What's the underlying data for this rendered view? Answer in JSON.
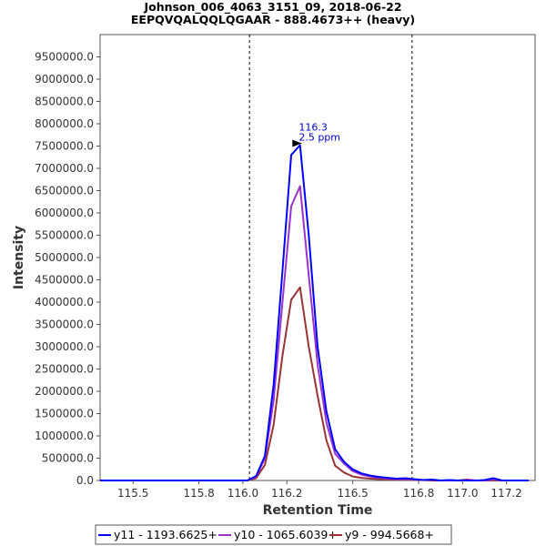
{
  "chart_data": {
    "type": "line",
    "title": "Johnson_006_4063_3151_09, 2018-06-22",
    "subtitle": "EEPQVQALQQLQGAAR - 888.4673++ (heavy)",
    "xlabel": "Retention Time",
    "ylabel": "Intensity",
    "xlim": [
      115.35,
      117.33
    ],
    "ylim": [
      0,
      10000000
    ],
    "x_ticks": [
      115.5,
      115.8,
      116.0,
      116.2,
      116.5,
      116.8,
      117.0,
      117.2
    ],
    "x_tick_labels": [
      "115.5",
      "115.8",
      "116.0",
      "116.2",
      "116.5",
      "116.8",
      "117.0",
      "117.2"
    ],
    "y_ticks": [
      0,
      500000,
      1000000,
      1500000,
      2000000,
      2500000,
      3000000,
      3500000,
      4000000,
      4500000,
      5000000,
      5500000,
      6000000,
      6500000,
      7000000,
      7500000,
      8000000,
      8500000,
      9000000,
      9500000
    ],
    "y_tick_labels": [
      "0.0",
      "500000.0",
      "1000000.0",
      "1500000.0",
      "2000000.0",
      "2500000.0",
      "3000000.0",
      "3500000.0",
      "4000000.0",
      "4500000.0",
      "5000000.0",
      "5500000.0",
      "6000000.0",
      "6500000.0",
      "7000000.0",
      "7500000.0",
      "8000000.0",
      "8500000.0",
      "9000000.0",
      "9500000.0"
    ],
    "grid": false,
    "vlines": [
      116.03,
      116.77
    ],
    "annotation": {
      "x": 116.3,
      "y": 7520000,
      "lines": [
        "116.3",
        "2.5 ppm"
      ],
      "color": "#0000cc"
    },
    "legend_position": "bottom",
    "series": [
      {
        "name": "y11 - 1193.6625+",
        "color": "#0000ff",
        "x": [
          115.35,
          116.02,
          116.06,
          116.1,
          116.14,
          116.18,
          116.22,
          116.26,
          116.3,
          116.34,
          116.38,
          116.42,
          116.46,
          116.5,
          116.54,
          116.58,
          116.62,
          116.66,
          116.7,
          116.74,
          116.78,
          116.82,
          116.86,
          116.9,
          116.94,
          116.98,
          117.02,
          117.06,
          117.1,
          117.14,
          117.18,
          117.22,
          117.26,
          117.3
        ],
        "y": [
          0,
          0,
          100000,
          550000,
          2150000,
          4700000,
          7300000,
          7520000,
          5500000,
          3000000,
          1550000,
          700000,
          420000,
          250000,
          160000,
          110000,
          80000,
          60000,
          40000,
          50000,
          30000,
          10000,
          20000,
          0,
          10000,
          0,
          0,
          0,
          10000,
          50000,
          0,
          0,
          0,
          0
        ]
      },
      {
        "name": "y10 - 1065.6039+",
        "color": "#9933cc",
        "x": [
          115.35,
          116.02,
          116.06,
          116.1,
          116.14,
          116.18,
          116.22,
          116.26,
          116.3,
          116.34,
          116.38,
          116.42,
          116.46,
          116.5,
          116.54,
          116.58,
          116.62,
          116.66,
          116.7,
          116.74,
          116.78,
          116.82,
          116.86,
          116.9,
          116.94,
          116.98,
          117.02,
          117.06,
          117.1,
          117.14,
          117.18,
          117.22,
          117.26,
          117.3
        ],
        "y": [
          0,
          0,
          80000,
          500000,
          1800000,
          4000000,
          6150000,
          6600000,
          4600000,
          2600000,
          1300000,
          600000,
          380000,
          210000,
          130000,
          90000,
          60000,
          40000,
          30000,
          30000,
          20000,
          10000,
          10000,
          0,
          0,
          0,
          10000,
          0,
          0,
          20000,
          0,
          0,
          0,
          0
        ]
      },
      {
        "name": "y9 - 994.5668+",
        "color": "#993333",
        "x": [
          115.35,
          116.02,
          116.06,
          116.1,
          116.14,
          116.18,
          116.22,
          116.26,
          116.3,
          116.34,
          116.38,
          116.42,
          116.46,
          116.5,
          116.54,
          116.58,
          116.62,
          116.66,
          116.7,
          116.74,
          116.78,
          116.82,
          116.86,
          116.9,
          116.94,
          116.98,
          117.02,
          117.06,
          117.1,
          117.14,
          117.18,
          117.22,
          117.26,
          117.3
        ],
        "y": [
          0,
          0,
          50000,
          350000,
          1250000,
          2800000,
          4050000,
          4330000,
          3000000,
          1900000,
          900000,
          330000,
          180000,
          90000,
          60000,
          40000,
          30000,
          20000,
          20000,
          20000,
          10000,
          10000,
          0,
          0,
          0,
          0,
          20000,
          0,
          0,
          0,
          0,
          0,
          0,
          0
        ]
      }
    ]
  }
}
